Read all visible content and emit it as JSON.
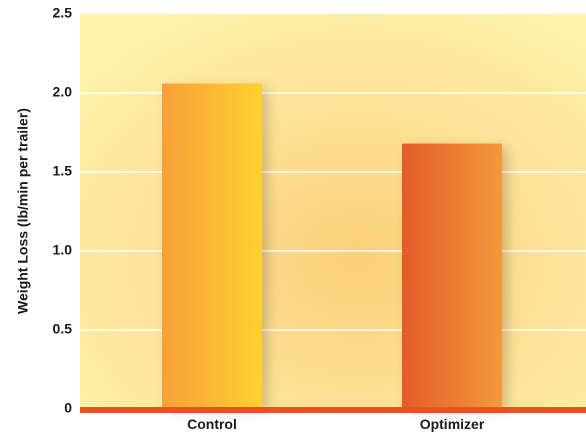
{
  "chart_data": {
    "type": "bar",
    "title": "",
    "xlabel": "",
    "ylabel": "Weight Loss (lb/min per trailer)",
    "categories": [
      "Control",
      "Optimizer"
    ],
    "values": [
      2.06,
      1.68
    ],
    "ylim": [
      0,
      2.5
    ],
    "yticks": [
      "0",
      "0.5",
      "1.0",
      "1.5",
      "2.0",
      "2.5"
    ],
    "ytick_values": [
      0,
      0.5,
      1.0,
      1.5,
      2.0,
      2.5
    ],
    "grid": true,
    "colors": {
      "background_light": "#fdf3a8",
      "background_warm": "#fbd27a",
      "gridline": "#ffffff",
      "baseline": "#e0571f",
      "control_bar": [
        "#f7a039",
        "#fed12f"
      ],
      "optimizer_bar": [
        "#e35b2a",
        "#f49a3a"
      ]
    }
  }
}
